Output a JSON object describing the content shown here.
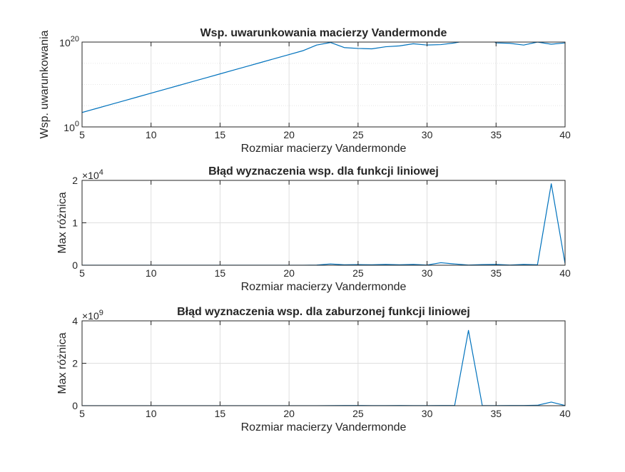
{
  "chart_data": [
    {
      "type": "line",
      "title": "Wsp. uwarunkowania macierzy Vandermonde",
      "xlabel": "Rozmiar macierzy Vandermonde",
      "ylabel": "Wsp. uwarunkowania",
      "xlim": [
        5,
        40
      ],
      "xticks": [
        5,
        10,
        15,
        20,
        25,
        30,
        35,
        40
      ],
      "yscale": "log",
      "ylim_exp": [
        0,
        20
      ],
      "yticks": [
        {
          "base": "10",
          "exp": "0",
          "value_exp": 0
        },
        {
          "base": "10",
          "exp": "20",
          "value_exp": 20
        }
      ],
      "grid": true,
      "exponent_label": "",
      "series": [
        {
          "color": "#0072bd",
          "x": [
            5,
            6,
            7,
            8,
            9,
            10,
            11,
            12,
            13,
            14,
            15,
            16,
            17,
            18,
            19,
            20,
            21,
            22,
            23,
            24,
            25,
            26,
            27,
            28,
            29,
            30,
            31,
            32,
            33,
            34,
            35,
            36,
            37,
            38,
            39,
            40
          ],
          "y_exp": [
            3.4,
            4.31,
            5.22,
            6.13,
            7.04,
            7.95,
            8.86,
            9.77,
            10.68,
            11.59,
            12.5,
            13.41,
            14.32,
            15.23,
            16.14,
            17.05,
            17.96,
            19.3,
            19.9,
            18.7,
            18.5,
            18.4,
            18.9,
            19.1,
            19.6,
            19.3,
            19.4,
            19.8,
            20.4,
            22.0,
            19.8,
            19.7,
            19.3,
            20.0,
            19.5,
            19.8
          ]
        }
      ]
    },
    {
      "type": "line",
      "title": "Błąd wyznaczenia wsp. dla funkcji liniowej",
      "xlabel": "Rozmiar macierzy Vandermonde",
      "ylabel": "Max różnica",
      "xlim": [
        5,
        40
      ],
      "xticks": [
        5,
        10,
        15,
        20,
        25,
        30,
        35,
        40
      ],
      "yscale": "linear",
      "ylim": [
        0,
        2
      ],
      "yticks": [
        0,
        1,
        2
      ],
      "grid": true,
      "exponent_label": {
        "base": "×10",
        "exp": "4"
      },
      "series": [
        {
          "color": "#0072bd",
          "x": [
            5,
            6,
            7,
            8,
            9,
            10,
            11,
            12,
            13,
            14,
            15,
            16,
            17,
            18,
            19,
            20,
            21,
            22,
            23,
            24,
            25,
            26,
            27,
            28,
            29,
            30,
            31,
            32,
            33,
            34,
            35,
            36,
            37,
            38,
            39,
            40
          ],
          "y": [
            0,
            0,
            0,
            0,
            0,
            0,
            0,
            0,
            0,
            0,
            0,
            0,
            0,
            0,
            0,
            0,
            0,
            0.005,
            0.03,
            0.01,
            0.015,
            0.01,
            0.02,
            0.01,
            0.02,
            0.005,
            0.06,
            0.03,
            0.005,
            0.015,
            0.02,
            0.005,
            0.02,
            0.01,
            1.92,
            0.04
          ]
        }
      ]
    },
    {
      "type": "line",
      "title": "Błąd wyznaczenia wsp. dla zaburzonej funkcji liniowej",
      "xlabel": "Rozmiar macierzy Vandermonde",
      "ylabel": "Max różnica",
      "xlim": [
        5,
        40
      ],
      "xticks": [
        5,
        10,
        15,
        20,
        25,
        30,
        35,
        40
      ],
      "yscale": "linear",
      "ylim": [
        0,
        4
      ],
      "yticks": [
        0,
        2,
        4
      ],
      "grid": true,
      "exponent_label": {
        "base": "×10",
        "exp": "9"
      },
      "series": [
        {
          "color": "#0072bd",
          "x": [
            5,
            6,
            7,
            8,
            9,
            10,
            11,
            12,
            13,
            14,
            15,
            16,
            17,
            18,
            19,
            20,
            21,
            22,
            23,
            24,
            25,
            26,
            27,
            28,
            29,
            30,
            31,
            32,
            33,
            34,
            35,
            36,
            37,
            38,
            39,
            40
          ],
          "y": [
            0,
            0,
            0,
            0,
            0,
            0,
            0,
            0,
            0,
            0,
            0,
            0,
            0,
            0,
            0,
            0,
            0,
            0,
            0.005,
            0.01,
            0.01,
            0.005,
            0.005,
            0.01,
            0.005,
            0.005,
            0.01,
            0.01,
            3.55,
            0.01,
            0.005,
            0.01,
            0.01,
            0.02,
            0.17,
            0.01
          ]
        }
      ]
    }
  ]
}
